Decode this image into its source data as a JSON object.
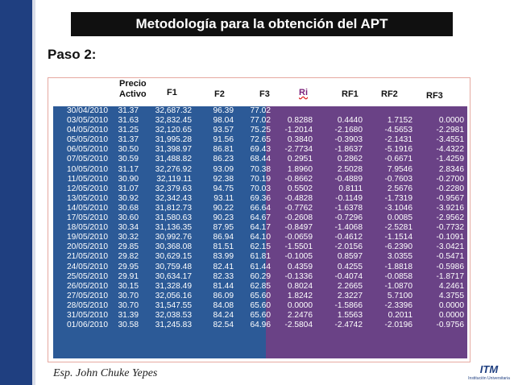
{
  "slide": {
    "title": "Metodología para la obtención del APT",
    "step": "Paso 2:",
    "author": "Esp. John Chuke Yepes"
  },
  "logo": {
    "name": "ITM",
    "subtitle": "Institución Universitaria"
  },
  "colors": {
    "accent_bar": "#1f3f80",
    "table_blue": "#2c5a97",
    "table_purple": "#6a4286"
  },
  "table": {
    "headers": {
      "price_line1": "Precio",
      "price_line2": "Activo",
      "f1": "F1",
      "f2": "F2",
      "f3": "F3",
      "ri": "Ri",
      "rf1": "RF1",
      "rf2": "RF2",
      "rf3": "RF3"
    },
    "rows": [
      [
        "30/04/2010",
        "31.37",
        "32,687.32",
        "96.39",
        "77.02",
        "",
        "",
        "",
        ""
      ],
      [
        "03/05/2010",
        "31.63",
        "32,832.45",
        "98.04",
        "77.02",
        "0.8288",
        "0.4440",
        "1.7152",
        "0.0000"
      ],
      [
        "04/05/2010",
        "31.25",
        "32,120.65",
        "93.57",
        "75.25",
        "-1.2014",
        "-2.1680",
        "-4.5653",
        "-2.2981"
      ],
      [
        "05/05/2010",
        "31.37",
        "31,995.28",
        "91.56",
        "72.65",
        "0.3840",
        "-0.3903",
        "-2.1431",
        "-3.4551"
      ],
      [
        "06/05/2010",
        "30.50",
        "31,398.97",
        "86.81",
        "69.43",
        "-2.7734",
        "-1.8637",
        "-5.1916",
        "-4.4322"
      ],
      [
        "07/05/2010",
        "30.59",
        "31,488.82",
        "86.23",
        "68.44",
        "0.2951",
        "0.2862",
        "-0.6671",
        "-1.4259"
      ],
      [
        "10/05/2010",
        "31.17",
        "32,276.92",
        "93.09",
        "70.38",
        "1.8960",
        "2.5028",
        "7.9546",
        "2.8346"
      ],
      [
        "11/05/2010",
        "30.90",
        "32,119.11",
        "92.38",
        "70.19",
        "-0.8662",
        "-0.4889",
        "-0.7603",
        "-0.2700"
      ],
      [
        "12/05/2010",
        "31.07",
        "32,379.63",
        "94.75",
        "70.03",
        "0.5502",
        "0.8111",
        "2.5676",
        "-0.2280"
      ],
      [
        "13/05/2010",
        "30.92",
        "32,342.43",
        "93.11",
        "69.36",
        "-0.4828",
        "-0.1149",
        "-1.7319",
        "-0.9567"
      ],
      [
        "14/05/2010",
        "30.68",
        "31,812.73",
        "90.22",
        "66.64",
        "-0.7762",
        "-1.6378",
        "-3.1046",
        "-3.9216"
      ],
      [
        "17/05/2010",
        "30.60",
        "31,580.63",
        "90.23",
        "64.67",
        "-0.2608",
        "-0.7296",
        "0.0085",
        "-2.9562"
      ],
      [
        "18/05/2010",
        "30.34",
        "31,136.35",
        "87.95",
        "64.17",
        "-0.8497",
        "-1.4068",
        "-2.5281",
        "-0.7732"
      ],
      [
        "19/05/2010",
        "30.32",
        "30,992.76",
        "86.94",
        "64.10",
        "-0.0659",
        "-0.4612",
        "-1.1514",
        "-0.1091"
      ],
      [
        "20/05/2010",
        "29.85",
        "30,368.08",
        "81.51",
        "62.15",
        "-1.5501",
        "-2.0156",
        "-6.2390",
        "-3.0421"
      ],
      [
        "21/05/2010",
        "29.82",
        "30,629.15",
        "83.99",
        "61.81",
        "-0.1005",
        "0.8597",
        "3.0355",
        "-0.5471"
      ],
      [
        "24/05/2010",
        "29.95",
        "30,759.48",
        "82.41",
        "61.44",
        "0.4359",
        "0.4255",
        "-1.8818",
        "-0.5986"
      ],
      [
        "25/05/2010",
        "29.91",
        "30,634.17",
        "82.33",
        "60.29",
        "-0.1336",
        "-0.4074",
        "-0.0858",
        "-1.8717"
      ],
      [
        "26/05/2010",
        "30.15",
        "31,328.49",
        "81.44",
        "62.85",
        "0.8024",
        "2.2665",
        "-1.0870",
        "4.2461"
      ],
      [
        "27/05/2010",
        "30.70",
        "32,056.16",
        "86.09",
        "65.60",
        "1.8242",
        "2.3227",
        "5.7100",
        "4.3755"
      ],
      [
        "28/05/2010",
        "30.70",
        "31,547.55",
        "84.08",
        "65.60",
        "0.0000",
        "-1.5866",
        "-2.3396",
        "0.0000"
      ],
      [
        "31/05/2010",
        "31.39",
        "32,038.53",
        "84.24",
        "65.60",
        "2.2476",
        "1.5563",
        "0.2011",
        "0.0000"
      ],
      [
        "01/06/2010",
        "30.58",
        "31,245.83",
        "82.54",
        "64.96",
        "-2.5804",
        "-2.4742",
        "-2.0196",
        "-0.9756"
      ]
    ]
  }
}
